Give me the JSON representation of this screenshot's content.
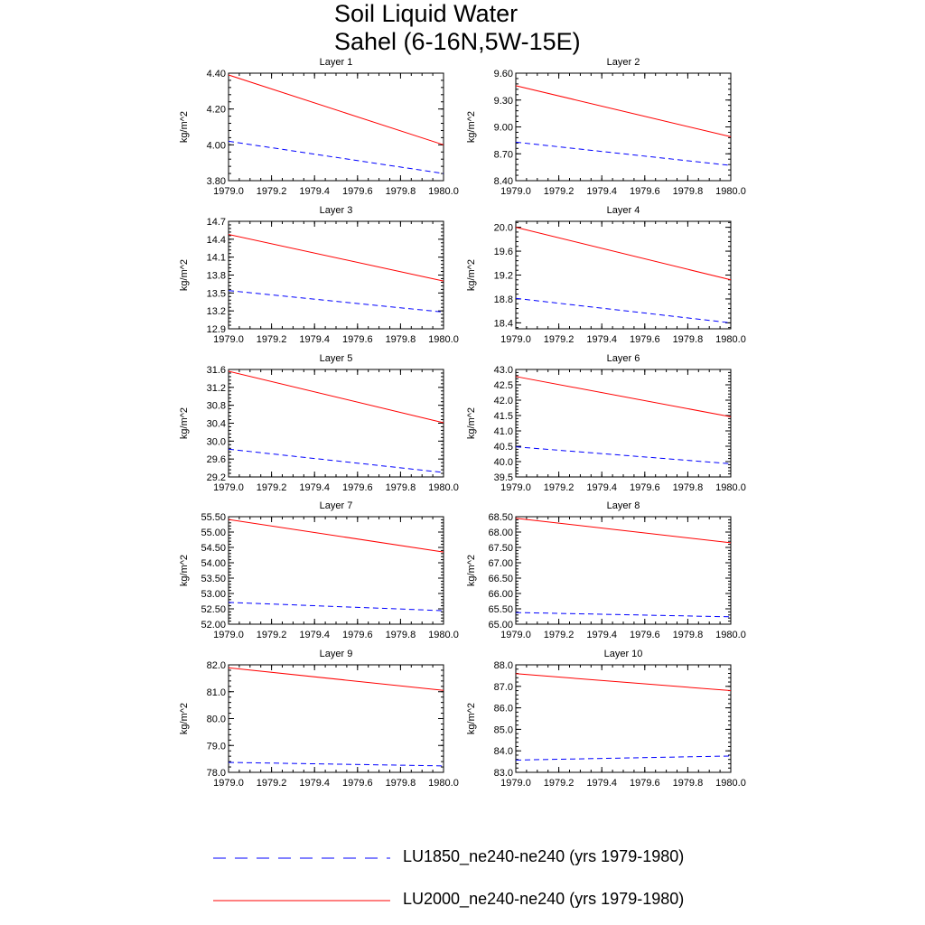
{
  "figure": {
    "title_line1": "Soil Liquid Water",
    "title_line2": "Sahel (6-16N,5W-15E)"
  },
  "legend": [
    {
      "label": "LU1850_ne240-ne240 (yrs 1979-1980)",
      "color": "#0000ff",
      "dash": "dashed"
    },
    {
      "label": "LU2000_ne240-ne240 (yrs 1979-1980)",
      "color": "#ff0000",
      "dash": "solid"
    }
  ],
  "chart_data": [
    {
      "type": "line",
      "title": "Layer 1",
      "xlabel": "",
      "ylabel": "kg/m^2",
      "xlim": [
        1979.0,
        1980.0
      ],
      "ylim": [
        3.8,
        4.4
      ],
      "xticks": [
        "1979.0",
        "1979.2",
        "1979.4",
        "1979.6",
        "1979.8",
        "1980.0"
      ],
      "yticks": [
        "3.80",
        "4.00",
        "4.20",
        "4.40"
      ],
      "yminor": 0.04,
      "x": [
        1979.0,
        1980.0
      ],
      "series": [
        {
          "name": "LU1850_ne240-ne240 (yrs 1979-1980)",
          "values": [
            4.02,
            3.84
          ]
        },
        {
          "name": "LU2000_ne240-ne240 (yrs 1979-1980)",
          "values": [
            4.39,
            4.0
          ]
        }
      ]
    },
    {
      "type": "line",
      "title": "Layer 2",
      "xlabel": "",
      "ylabel": "kg/m^2",
      "xlim": [
        1979.0,
        1980.0
      ],
      "ylim": [
        8.4,
        9.6
      ],
      "xticks": [
        "1979.0",
        "1979.2",
        "1979.4",
        "1979.6",
        "1979.8",
        "1980.0"
      ],
      "yticks": [
        "8.40",
        "8.70",
        "9.00",
        "9.30",
        "9.60"
      ],
      "yminor": 0.06,
      "x": [
        1979.0,
        1980.0
      ],
      "series": [
        {
          "name": "LU1850_ne240-ne240 (yrs 1979-1980)",
          "values": [
            8.83,
            8.57
          ]
        },
        {
          "name": "LU2000_ne240-ne240 (yrs 1979-1980)",
          "values": [
            9.46,
            8.89
          ]
        }
      ]
    },
    {
      "type": "line",
      "title": "Layer 3",
      "xlabel": "",
      "ylabel": "kg/m^2",
      "xlim": [
        1979.0,
        1980.0
      ],
      "ylim": [
        12.9,
        14.7
      ],
      "xticks": [
        "1979.0",
        "1979.2",
        "1979.4",
        "1979.6",
        "1979.8",
        "1980.0"
      ],
      "yticks": [
        "12.9",
        "13.2",
        "13.5",
        "13.8",
        "14.1",
        "14.4",
        "14.7"
      ],
      "yminor": 0.06,
      "x": [
        1979.0,
        1980.0
      ],
      "series": [
        {
          "name": "LU1850_ne240-ne240 (yrs 1979-1980)",
          "values": [
            13.54,
            13.18
          ]
        },
        {
          "name": "LU2000_ne240-ne240 (yrs 1979-1980)",
          "values": [
            14.48,
            13.7
          ]
        }
      ]
    },
    {
      "type": "line",
      "title": "Layer 4",
      "xlabel": "",
      "ylabel": "kg/m^2",
      "xlim": [
        1979.0,
        1980.0
      ],
      "ylim": [
        18.3,
        20.1
      ],
      "xticks": [
        "1979.0",
        "1979.2",
        "1979.4",
        "1979.6",
        "1979.8",
        "1980.0"
      ],
      "yticks": [
        "18.4",
        "18.8",
        "19.2",
        "19.6",
        "20.0"
      ],
      "yminor": 0.08,
      "x": [
        1979.0,
        1980.0
      ],
      "series": [
        {
          "name": "LU1850_ne240-ne240 (yrs 1979-1980)",
          "values": [
            18.81,
            18.4
          ]
        },
        {
          "name": "LU2000_ne240-ne240 (yrs 1979-1980)",
          "values": [
            20.0,
            19.12
          ]
        }
      ]
    },
    {
      "type": "line",
      "title": "Layer 5",
      "xlabel": "",
      "ylabel": "kg/m^2",
      "xlim": [
        1979.0,
        1980.0
      ],
      "ylim": [
        29.2,
        31.6
      ],
      "xticks": [
        "1979.0",
        "1979.2",
        "1979.4",
        "1979.6",
        "1979.8",
        "1980.0"
      ],
      "yticks": [
        "29.2",
        "29.6",
        "30.0",
        "30.4",
        "30.8",
        "31.2",
        "31.6"
      ],
      "yminor": 0.08,
      "x": [
        1979.0,
        1980.0
      ],
      "series": [
        {
          "name": "LU1850_ne240-ne240 (yrs 1979-1980)",
          "values": [
            29.82,
            29.3
          ]
        },
        {
          "name": "LU2000_ne240-ne240 (yrs 1979-1980)",
          "values": [
            31.56,
            30.41
          ]
        }
      ]
    },
    {
      "type": "line",
      "title": "Layer 6",
      "xlabel": "",
      "ylabel": "kg/m^2",
      "xlim": [
        1979.0,
        1980.0
      ],
      "ylim": [
        39.5,
        43.0
      ],
      "xticks": [
        "1979.0",
        "1979.2",
        "1979.4",
        "1979.6",
        "1979.8",
        "1980.0"
      ],
      "yticks": [
        "39.5",
        "40.0",
        "40.5",
        "41.0",
        "41.5",
        "42.0",
        "42.5",
        "43.0"
      ],
      "yminor": 0.1,
      "x": [
        1979.0,
        1980.0
      ],
      "series": [
        {
          "name": "LU1850_ne240-ne240 (yrs 1979-1980)",
          "values": [
            40.48,
            39.93
          ]
        },
        {
          "name": "LU2000_ne240-ne240 (yrs 1979-1980)",
          "values": [
            42.77,
            41.46
          ]
        }
      ]
    },
    {
      "type": "line",
      "title": "Layer 7",
      "xlabel": "",
      "ylabel": "kg/m^2",
      "xlim": [
        1979.0,
        1980.0
      ],
      "ylim": [
        52.0,
        55.5
      ],
      "xticks": [
        "1979.0",
        "1979.2",
        "1979.4",
        "1979.6",
        "1979.8",
        "1980.0"
      ],
      "yticks": [
        "52.00",
        "52.50",
        "53.00",
        "53.50",
        "54.00",
        "54.50",
        "55.00",
        "55.50"
      ],
      "yminor": 0.1,
      "x": [
        1979.0,
        1980.0
      ],
      "series": [
        {
          "name": "LU1850_ne240-ne240 (yrs 1979-1980)",
          "values": [
            52.71,
            52.44
          ]
        },
        {
          "name": "LU2000_ne240-ne240 (yrs 1979-1980)",
          "values": [
            55.41,
            54.35
          ]
        }
      ]
    },
    {
      "type": "line",
      "title": "Layer 8",
      "xlabel": "",
      "ylabel": "kg/m^2",
      "xlim": [
        1979.0,
        1980.0
      ],
      "ylim": [
        65.0,
        68.5
      ],
      "xticks": [
        "1979.0",
        "1979.2",
        "1979.4",
        "1979.6",
        "1979.8",
        "1980.0"
      ],
      "yticks": [
        "65.00",
        "65.50",
        "66.00",
        "66.50",
        "67.00",
        "67.50",
        "68.00",
        "68.50"
      ],
      "yminor": 0.1,
      "x": [
        1979.0,
        1980.0
      ],
      "series": [
        {
          "name": "LU1850_ne240-ne240 (yrs 1979-1980)",
          "values": [
            65.38,
            65.24
          ]
        },
        {
          "name": "LU2000_ne240-ne240 (yrs 1979-1980)",
          "values": [
            68.45,
            67.65
          ]
        }
      ]
    },
    {
      "type": "line",
      "title": "Layer 9",
      "xlabel": "",
      "ylabel": "kg/m^2",
      "xlim": [
        1979.0,
        1980.0
      ],
      "ylim": [
        78.0,
        82.0
      ],
      "xticks": [
        "1979.0",
        "1979.2",
        "1979.4",
        "1979.6",
        "1979.8",
        "1980.0"
      ],
      "yticks": [
        "78.0",
        "79.0",
        "80.0",
        "81.0",
        "82.0"
      ],
      "yminor": 0.2,
      "x": [
        1979.0,
        1980.0
      ],
      "series": [
        {
          "name": "LU1850_ne240-ne240 (yrs 1979-1980)",
          "values": [
            78.37,
            78.24
          ]
        },
        {
          "name": "LU2000_ne240-ne240 (yrs 1979-1980)",
          "values": [
            81.89,
            81.05
          ]
        }
      ]
    },
    {
      "type": "line",
      "title": "Layer 10",
      "xlabel": "",
      "ylabel": "kg/m^2",
      "xlim": [
        1979.0,
        1980.0
      ],
      "ylim": [
        83.0,
        88.0
      ],
      "xticks": [
        "1979.0",
        "1979.2",
        "1979.4",
        "1979.6",
        "1979.8",
        "1980.0"
      ],
      "yticks": [
        "83.0",
        "84.0",
        "85.0",
        "86.0",
        "87.0",
        "88.0"
      ],
      "yminor": 0.2,
      "x": [
        1979.0,
        1980.0
      ],
      "series": [
        {
          "name": "LU1850_ne240-ne240 (yrs 1979-1980)",
          "values": [
            83.57,
            83.76
          ]
        },
        {
          "name": "LU2000_ne240-ne240 (yrs 1979-1980)",
          "values": [
            87.59,
            86.8
          ]
        }
      ]
    }
  ]
}
